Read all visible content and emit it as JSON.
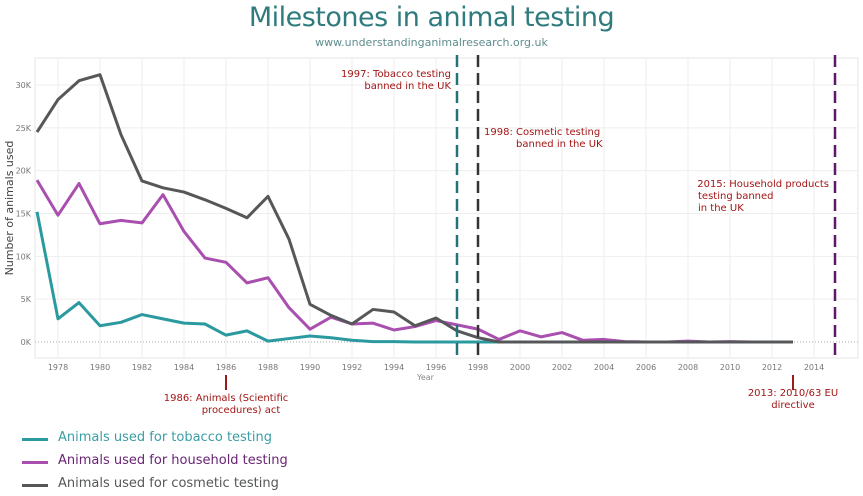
{
  "chart_data": {
    "type": "line",
    "title": "Milestones in animal testing",
    "subtitle": "www.understandinganimalresearch.org.uk",
    "xlabel": "Year",
    "ylabel": "Number of animals used",
    "xlim": [
      1977,
      2015.5
    ],
    "ylim": [
      0,
      33000
    ],
    "x_ticks": [
      1978,
      1980,
      1982,
      1984,
      1986,
      1988,
      1990,
      1992,
      1994,
      1996,
      1998,
      2000,
      2002,
      2004,
      2006,
      2008,
      2010,
      2012,
      2014
    ],
    "y_ticks": [
      {
        "value": 0,
        "label": "0K"
      },
      {
        "value": 5000,
        "label": "5K"
      },
      {
        "value": 10000,
        "label": "10K"
      },
      {
        "value": 15000,
        "label": "15K"
      },
      {
        "value": 20000,
        "label": "20K"
      },
      {
        "value": 25000,
        "label": "25K"
      },
      {
        "value": 30000,
        "label": "30K"
      }
    ],
    "grid": true,
    "legend_placement": "bottom-left",
    "series": [
      {
        "name": "Animals used for tobacco testing",
        "color": "#2a9aa0",
        "legend_color": "#3a9ea5",
        "x": [
          1977,
          1978,
          1979,
          1980,
          1981,
          1982,
          1983,
          1984,
          1985,
          1986,
          1987,
          1988,
          1989,
          1990,
          1991,
          1992,
          1993,
          1994,
          1995,
          1996,
          1997,
          1998,
          1999
        ],
        "values": [
          15200,
          2700,
          4600,
          1900,
          2300,
          3200,
          2700,
          2200,
          2100,
          800,
          1300,
          100,
          400,
          700,
          500,
          200,
          50,
          50,
          0,
          0,
          0,
          0,
          0
        ]
      },
      {
        "name": "Animals used for household testing",
        "color": "#a94fb0",
        "legend_color": "#6a2475",
        "x": [
          1977,
          1978,
          1979,
          1980,
          1981,
          1982,
          1983,
          1984,
          1985,
          1986,
          1987,
          1988,
          1989,
          1990,
          1991,
          1992,
          1993,
          1994,
          1995,
          1996,
          1997,
          1998,
          1999,
          2000,
          2001,
          2002,
          2003,
          2004,
          2005,
          2006,
          2007,
          2008,
          2009,
          2010,
          2011,
          2012,
          2013
        ],
        "values": [
          18900,
          14800,
          18500,
          13800,
          14200,
          13900,
          17200,
          12900,
          9800,
          9300,
          6900,
          7500,
          4000,
          1500,
          2900,
          2100,
          2200,
          1400,
          1800,
          2500,
          2000,
          1500,
          300,
          1300,
          600,
          1100,
          200,
          300,
          50,
          0,
          0,
          100,
          0,
          50,
          0,
          0,
          0
        ]
      },
      {
        "name": "Animals used for cosmetic testing",
        "color": "#555759",
        "legend_color": "#555759",
        "x": [
          1977,
          1978,
          1979,
          1980,
          1981,
          1982,
          1983,
          1984,
          1985,
          1986,
          1987,
          1988,
          1989,
          1990,
          1991,
          1992,
          1993,
          1994,
          1995,
          1996,
          1997,
          1998,
          1999,
          2000,
          2001,
          2002,
          2003,
          2004,
          2005,
          2006,
          2007,
          2008,
          2009,
          2010,
          2011,
          2012,
          2013
        ],
        "values": [
          24500,
          28300,
          30500,
          31200,
          24200,
          18800,
          18000,
          17500,
          16600,
          15600,
          14500,
          17000,
          12000,
          4400,
          3100,
          2100,
          3800,
          3500,
          1900,
          2800,
          1300,
          500,
          0,
          0,
          0,
          0,
          0,
          0,
          0,
          0,
          0,
          0,
          0,
          0,
          0,
          0,
          0
        ]
      }
    ],
    "annotations": [
      {
        "year": 1997,
        "kind": "vline",
        "color": "#22737a",
        "lines": [
          "1997: Tobacco testing",
          "banned in the UK"
        ]
      },
      {
        "year": 1998,
        "kind": "vline",
        "color": "#333333",
        "lines": [
          "1998: Cosmetic testing",
          "banned in the UK"
        ]
      },
      {
        "year": 2015,
        "kind": "vline",
        "color": "#5a1a66",
        "lines": [
          "2015: Household products",
          "testing banned",
          "in the UK"
        ]
      },
      {
        "year": 1986,
        "kind": "tick",
        "color": "#9b1b1b",
        "lines": [
          "1986: Animals (Scientific",
          "procedures) act"
        ]
      },
      {
        "year": 2013,
        "kind": "tick",
        "color": "#9b1b1b",
        "lines": [
          "2013: 2010/63 EU",
          "directive"
        ]
      }
    ],
    "annotation_text_color": "#a31515"
  }
}
